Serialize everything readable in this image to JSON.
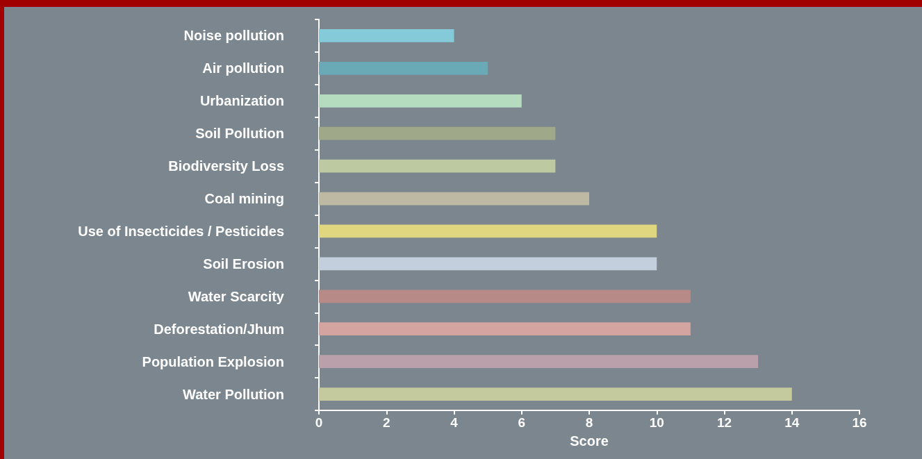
{
  "chart_data": {
    "type": "bar",
    "orientation": "horizontal",
    "xlabel": "Score",
    "categories": [
      "Noise pollution",
      "Air pollution",
      "Urbanization",
      "Soil Pollution",
      "Biodiversity Loss",
      "Coal mining",
      "Use of Insecticides / Pesticides",
      "Soil Erosion",
      "Water Scarcity",
      "Deforestation/Jhum",
      "Population Explosion",
      "Water Pollution"
    ],
    "values": [
      4,
      5,
      6,
      7,
      7,
      8,
      10,
      10,
      11,
      11,
      13,
      14
    ],
    "colors": [
      "#85cad8",
      "#6aaab6",
      "#b6dcc0",
      "#a0a88a",
      "#bdc9a0",
      "#bdb9a3",
      "#dfd67f",
      "#c3cfdc",
      "#b88a87",
      "#d4a4a0",
      "#b9a0aa",
      "#c4ca9d"
    ],
    "xlim": [
      0,
      16
    ],
    "xticks": [
      0,
      2,
      4,
      6,
      8,
      10,
      12,
      14,
      16
    ],
    "grid": false
  }
}
